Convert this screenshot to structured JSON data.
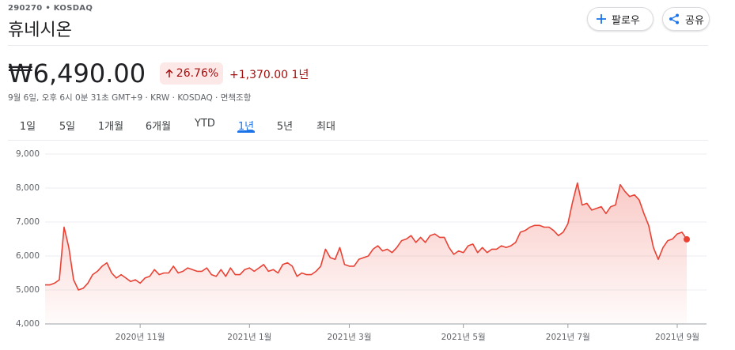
{
  "header": {
    "ticker": "290270 • KOSDAQ",
    "title": "휴네시온",
    "follow_button": "팔로우",
    "share_button": "공유"
  },
  "quote": {
    "price": "₩6,490.00",
    "change_percent": "26.76%",
    "change": "+1,370.00",
    "period": "1년",
    "meta": "9월 6일, 오후 6시 0분 31초 GMT+9 · KRW · KOSDAQ · 면책조항"
  },
  "tabs": {
    "items": [
      "1일",
      "5일",
      "1개월",
      "6개월",
      "YTD",
      "1년",
      "5년",
      "최대"
    ],
    "selected": "1년"
  },
  "chart_data": {
    "type": "line",
    "grid": true,
    "categories": [
      null,
      null,
      null,
      null,
      null,
      null,
      null,
      null,
      null,
      null,
      null,
      null,
      null,
      null,
      null,
      null,
      null,
      null,
      null,
      null,
      "2020년 11월",
      null,
      null,
      null,
      null,
      null,
      null,
      null,
      null,
      null,
      null,
      null,
      null,
      null,
      null,
      null,
      null,
      null,
      null,
      null,
      null,
      null,
      null,
      "2021년 1월",
      null,
      null,
      null,
      null,
      null,
      null,
      null,
      null,
      null,
      null,
      null,
      null,
      null,
      null,
      null,
      null,
      null,
      null,
      null,
      null,
      "2021년 3월",
      null,
      null,
      null,
      null,
      null,
      null,
      null,
      null,
      null,
      null,
      null,
      null,
      null,
      null,
      null,
      null,
      null,
      null,
      null,
      null,
      null,
      null,
      null,
      "2021년 5월",
      null,
      null,
      null,
      null,
      null,
      null,
      null,
      null,
      null,
      null,
      null,
      null,
      null,
      null,
      null,
      null,
      null,
      null,
      null,
      null,
      null,
      "2021년 7월",
      null,
      null,
      null,
      null,
      null,
      null,
      null,
      null,
      null,
      null,
      null,
      null,
      null,
      null,
      null,
      null,
      null,
      null,
      null,
      null,
      null,
      null,
      "2021년 9월",
      null,
      null
    ],
    "series": [
      {
        "color": "#e94235",
        "values": [
          5150,
          5150,
          5200,
          5300,
          6850,
          6250,
          5300,
          5000,
          5050,
          5200,
          5450,
          5550,
          5700,
          5800,
          5500,
          5350,
          5450,
          5350,
          5250,
          5300,
          5200,
          5350,
          5400,
          5600,
          5450,
          5500,
          5500,
          5700,
          5500,
          5550,
          5650,
          5600,
          5550,
          5550,
          5650,
          5450,
          5400,
          5600,
          5400,
          5650,
          5450,
          5450,
          5600,
          5650,
          5550,
          5650,
          5750,
          5550,
          5600,
          5500,
          5750,
          5800,
          5700,
          5400,
          5500,
          5450,
          5450,
          5550,
          5700,
          6200,
          5950,
          5900,
          6250,
          5750,
          5700,
          5700,
          5900,
          5950,
          6000,
          6200,
          6300,
          6150,
          6200,
          6100,
          6250,
          6450,
          6500,
          6600,
          6400,
          6550,
          6400,
          6600,
          6650,
          6550,
          6550,
          6250,
          6050,
          6150,
          6100,
          6300,
          6350,
          6100,
          6250,
          6100,
          6200,
          6200,
          6300,
          6250,
          6300,
          6400,
          6700,
          6750,
          6850,
          6900,
          6900,
          6850,
          6850,
          6750,
          6600,
          6700,
          6950,
          7600,
          8150,
          7500,
          7550,
          7350,
          7400,
          7450,
          7250,
          7450,
          7500,
          8100,
          7900,
          7750,
          7800,
          7650,
          7250,
          6900,
          6250,
          5900,
          6250,
          6450,
          6500,
          6650,
          6700,
          6490
        ]
      }
    ],
    "ylim": [
      4000,
      9000
    ],
    "yticks": [
      {
        "value": 4000,
        "label": "4,000"
      },
      {
        "value": 5000,
        "label": "5,000"
      },
      {
        "value": 6000,
        "label": "6,000"
      },
      {
        "value": 7000,
        "label": "7,000"
      },
      {
        "value": 8000,
        "label": "8,000"
      },
      {
        "value": 9000,
        "label": "9,000"
      }
    ]
  }
}
